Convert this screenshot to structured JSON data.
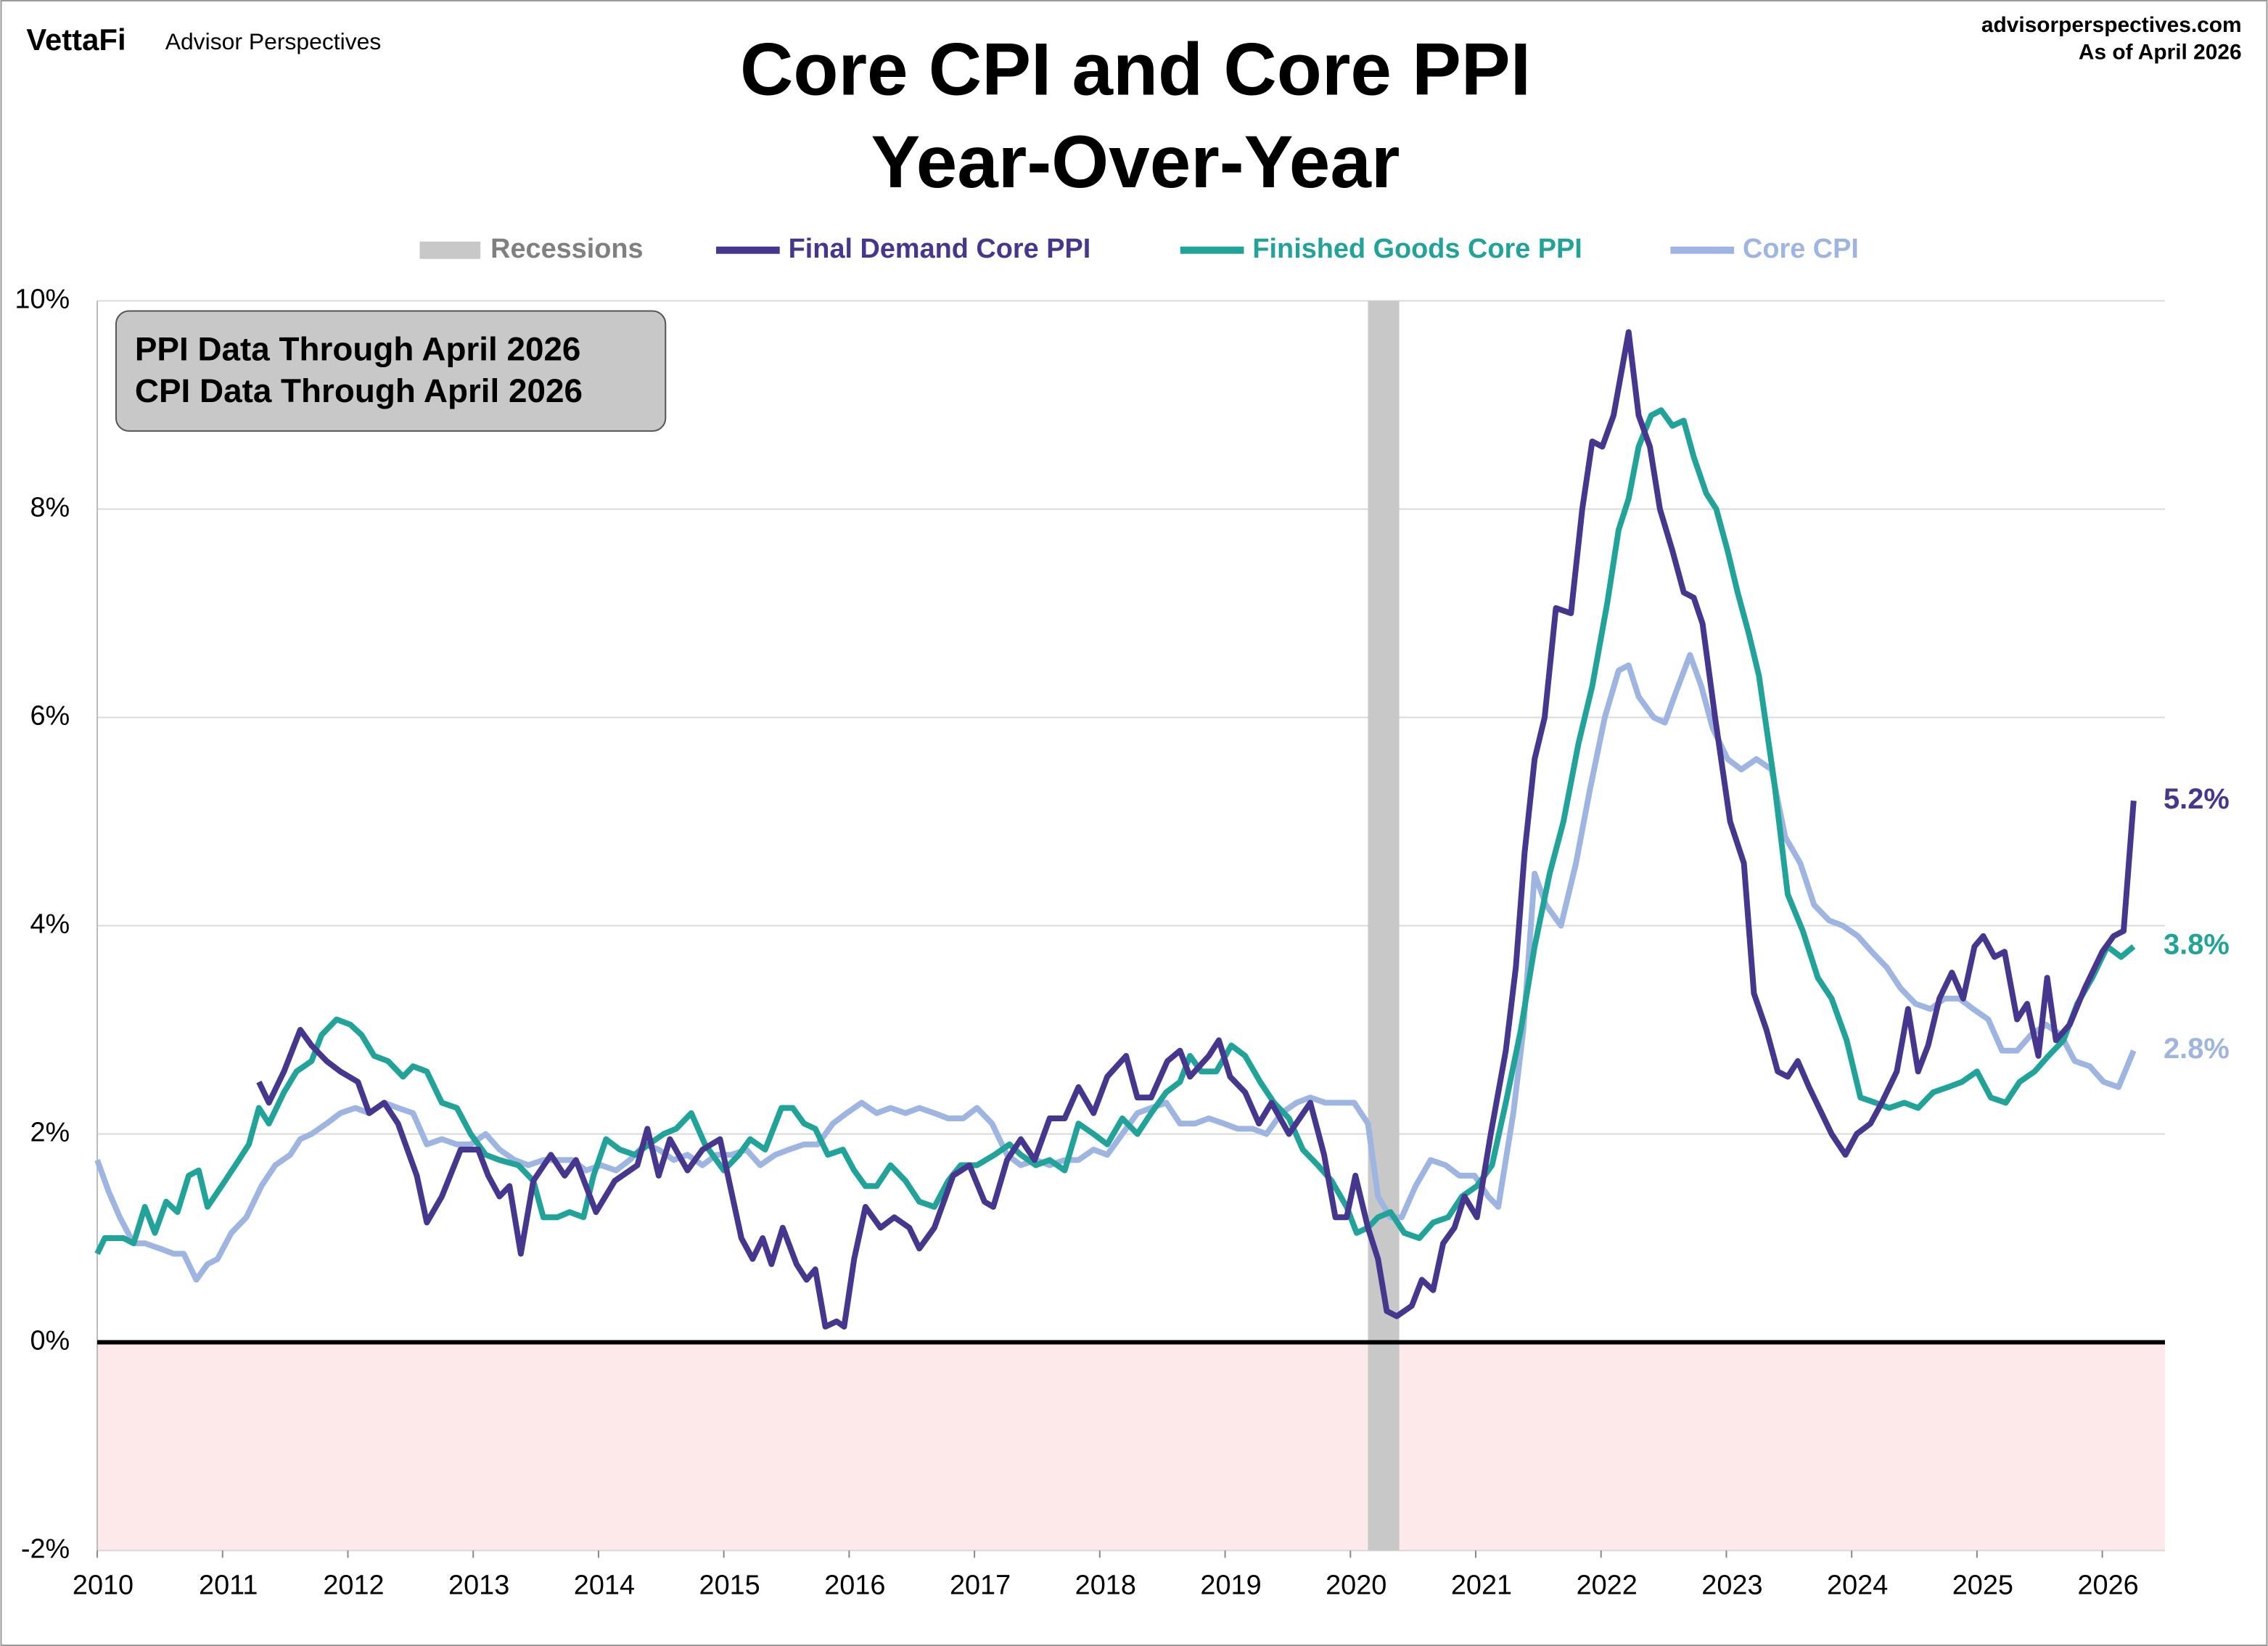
{
  "header": {
    "brand": "VettaFi",
    "brand_sub": "Advisor Perspectives",
    "site": "advisorperspectives.com",
    "as_of": "As of April 2026"
  },
  "chart_data": {
    "type": "line",
    "title": [
      "Core CPI and Core PPI",
      "Year-Over-Year"
    ],
    "annotation": [
      "PPI Data Through April 2026",
      "CPI Data Through April 2026"
    ],
    "xlim": [
      2010,
      2026.5
    ],
    "xticks": [
      2010,
      2011,
      2012,
      2013,
      2014,
      2015,
      2016,
      2017,
      2018,
      2019,
      2020,
      2021,
      2022,
      2023,
      2024,
      2025,
      2026
    ],
    "ylim": [
      -2,
      10
    ],
    "yticks": [
      {
        "value": -2,
        "label": "-2%"
      },
      {
        "value": 0,
        "label": "0%"
      },
      {
        "value": 2,
        "label": "2%"
      },
      {
        "value": 4,
        "label": "4%"
      },
      {
        "value": 6,
        "label": "6%"
      },
      {
        "value": 8,
        "label": "8%"
      },
      {
        "value": 10,
        "label": "10%"
      }
    ],
    "grid": true,
    "negative_fill": "#fde9e9",
    "recessions": {
      "name": "Recessions",
      "color": "#c8c8c8",
      "label_color": "#808080",
      "ranges": [
        [
          2020.14,
          2020.39
        ]
      ]
    },
    "series": [
      {
        "name": "Final Demand Core PPI",
        "color": "#46368e",
        "x": [
          2011.29,
          2011.37,
          2011.49,
          2011.62,
          2011.71,
          2011.83,
          2011.94,
          2012.08,
          2012.17,
          2012.29,
          2012.4,
          2012.55,
          2012.63,
          2012.75,
          2012.9,
          2013.04,
          2013.12,
          2013.21,
          2013.29,
          2013.38,
          2013.48,
          2013.62,
          2013.73,
          2013.82,
          2013.98,
          2014.13,
          2014.31,
          2014.39,
          2014.48,
          2014.57,
          2014.71,
          2014.83,
          2014.97,
          2015.14,
          2015.23,
          2015.31,
          2015.38,
          2015.47,
          2015.58,
          2015.66,
          2015.73,
          2015.81,
          2015.9,
          2015.96,
          2016.04,
          2016.13,
          2016.25,
          2016.36,
          2016.48,
          2016.56,
          2016.68,
          2016.83,
          2016.96,
          2017.08,
          2017.15,
          2017.26,
          2017.37,
          2017.48,
          2017.6,
          2017.72,
          2017.83,
          2017.95,
          2018.06,
          2018.21,
          2018.3,
          2018.41,
          2018.54,
          2018.64,
          2018.72,
          2018.87,
          2018.95,
          2019.04,
          2019.16,
          2019.27,
          2019.37,
          2019.51,
          2019.68,
          2019.79,
          2019.88,
          2019.97,
          2020.04,
          2020.14,
          2020.22,
          2020.29,
          2020.37,
          2020.49,
          2020.57,
          2020.66,
          2020.74,
          2020.83,
          2020.91,
          2021.01,
          2021.12,
          2021.24,
          2021.32,
          2021.39,
          2021.47,
          2021.55,
          2021.64,
          2021.76,
          2021.85,
          2021.93,
          2022.01,
          2022.1,
          2022.22,
          2022.3,
          2022.39,
          2022.47,
          2022.57,
          2022.66,
          2022.74,
          2022.81,
          2022.91,
          2023.03,
          2023.14,
          2023.22,
          2023.32,
          2023.41,
          2023.49,
          2023.57,
          2023.66,
          2023.76,
          2023.84,
          2023.95,
          2024.04,
          2024.15,
          2024.24,
          2024.36,
          2024.45,
          2024.53,
          2024.61,
          2024.7,
          2024.8,
          2024.89,
          2024.98,
          2025.05,
          2025.14,
          2025.22,
          2025.32,
          2025.4,
          2025.49,
          2025.56,
          2025.63,
          2025.74,
          2025.86,
          2026.0,
          2026.09,
          2026.17,
          2026.25
        ],
        "values": [
          2.5,
          2.3,
          2.6,
          3.0,
          2.85,
          2.7,
          2.6,
          2.5,
          2.2,
          2.3,
          2.1,
          1.6,
          1.15,
          1.4,
          1.85,
          1.85,
          1.6,
          1.4,
          1.5,
          0.85,
          1.55,
          1.8,
          1.6,
          1.75,
          1.25,
          1.55,
          1.7,
          2.05,
          1.6,
          1.95,
          1.65,
          1.85,
          1.95,
          1.0,
          0.8,
          1.0,
          0.75,
          1.1,
          0.75,
          0.6,
          0.7,
          0.15,
          0.2,
          0.15,
          0.8,
          1.3,
          1.1,
          1.2,
          1.1,
          0.9,
          1.1,
          1.6,
          1.7,
          1.35,
          1.3,
          1.75,
          1.95,
          1.75,
          2.15,
          2.15,
          2.45,
          2.2,
          2.55,
          2.75,
          2.35,
          2.35,
          2.7,
          2.8,
          2.55,
          2.75,
          2.9,
          2.55,
          2.4,
          2.1,
          2.3,
          2.0,
          2.3,
          1.8,
          1.2,
          1.2,
          1.6,
          1.1,
          0.8,
          0.3,
          0.25,
          0.35,
          0.6,
          0.5,
          0.95,
          1.1,
          1.4,
          1.2,
          2.0,
          2.8,
          3.6,
          4.7,
          5.6,
          6.0,
          7.05,
          7.0,
          8.0,
          8.65,
          8.6,
          8.9,
          9.7,
          8.9,
          8.6,
          8.0,
          7.6,
          7.2,
          7.15,
          6.9,
          6.0,
          5.0,
          4.6,
          3.35,
          3.0,
          2.6,
          2.55,
          2.7,
          2.45,
          2.2,
          2.0,
          1.8,
          2.0,
          2.1,
          2.3,
          2.6,
          3.2,
          2.6,
          2.85,
          3.3,
          3.55,
          3.3,
          3.8,
          3.9,
          3.7,
          3.75,
          3.1,
          3.25,
          2.75,
          3.5,
          2.9,
          3.05,
          3.4,
          3.75,
          3.9,
          3.95,
          5.2
        ],
        "end_label": {
          "value": 5.2,
          "label": "5.2%"
        }
      },
      {
        "name": "Finished Goods Core PPI",
        "color": "#22a39a",
        "x": [
          2010.0,
          2010.06,
          2010.21,
          2010.29,
          2010.38,
          2010.46,
          2010.55,
          2010.64,
          2010.73,
          2010.81,
          2010.88,
          2011.02,
          2011.13,
          2011.21,
          2011.29,
          2011.37,
          2011.49,
          2011.59,
          2011.71,
          2011.79,
          2011.91,
          2012.02,
          2012.11,
          2012.21,
          2012.32,
          2012.44,
          2012.52,
          2012.63,
          2012.75,
          2012.87,
          2012.98,
          2013.1,
          2013.21,
          2013.36,
          2013.48,
          2013.56,
          2013.67,
          2013.77,
          2013.88,
          2013.96,
          2014.06,
          2014.17,
          2014.29,
          2014.4,
          2014.52,
          2014.62,
          2014.74,
          2014.85,
          2015.0,
          2015.12,
          2015.21,
          2015.33,
          2015.46,
          2015.55,
          2015.64,
          2015.73,
          2015.83,
          2015.95,
          2016.04,
          2016.13,
          2016.22,
          2016.33,
          2016.45,
          2016.56,
          2016.68,
          2016.79,
          2016.89,
          2017.02,
          2017.16,
          2017.28,
          2017.37,
          2017.49,
          2017.6,
          2017.72,
          2017.83,
          2017.95,
          2018.06,
          2018.18,
          2018.3,
          2018.41,
          2018.53,
          2018.64,
          2018.72,
          2018.81,
          2018.93,
          2019.05,
          2019.16,
          2019.28,
          2019.39,
          2019.51,
          2019.62,
          2019.74,
          2019.85,
          2019.97,
          2020.05,
          2020.14,
          2020.22,
          2020.32,
          2020.43,
          2020.55,
          2020.66,
          2020.78,
          2020.89,
          2021.01,
          2021.13,
          2021.24,
          2021.36,
          2021.47,
          2021.59,
          2021.7,
          2021.82,
          2021.93,
          2022.05,
          2022.14,
          2022.22,
          2022.3,
          2022.4,
          2022.48,
          2022.57,
          2022.66,
          2022.74,
          2022.84,
          2022.92,
          2023.01,
          2023.09,
          2023.18,
          2023.26,
          2023.38,
          2023.49,
          2023.61,
          2023.73,
          2023.84,
          2023.96,
          2024.07,
          2024.19,
          2024.3,
          2024.42,
          2024.53,
          2024.65,
          2024.77,
          2024.88,
          2025.0,
          2025.11,
          2025.23,
          2025.34,
          2025.46,
          2025.57,
          2025.69,
          2025.8,
          2025.92,
          2026.04,
          2026.15,
          2026.25
        ],
        "values": [
          0.85,
          1.0,
          1.0,
          0.95,
          1.3,
          1.05,
          1.35,
          1.25,
          1.6,
          1.65,
          1.3,
          1.55,
          1.75,
          1.9,
          2.25,
          2.1,
          2.4,
          2.6,
          2.7,
          2.95,
          3.1,
          3.05,
          2.95,
          2.75,
          2.7,
          2.55,
          2.65,
          2.6,
          2.3,
          2.25,
          2.0,
          1.8,
          1.75,
          1.7,
          1.55,
          1.2,
          1.2,
          1.25,
          1.2,
          1.6,
          1.95,
          1.85,
          1.8,
          1.9,
          2.0,
          2.05,
          2.2,
          1.9,
          1.65,
          1.8,
          1.95,
          1.85,
          2.25,
          2.25,
          2.1,
          2.05,
          1.8,
          1.85,
          1.65,
          1.5,
          1.5,
          1.7,
          1.55,
          1.35,
          1.3,
          1.55,
          1.7,
          1.7,
          1.8,
          1.9,
          1.8,
          1.7,
          1.75,
          1.65,
          2.1,
          2.0,
          1.9,
          2.15,
          2.0,
          2.2,
          2.4,
          2.5,
          2.75,
          2.6,
          2.6,
          2.85,
          2.75,
          2.5,
          2.3,
          2.15,
          1.85,
          1.7,
          1.55,
          1.3,
          1.05,
          1.1,
          1.2,
          1.25,
          1.05,
          1.0,
          1.15,
          1.2,
          1.4,
          1.5,
          1.7,
          2.3,
          3.0,
          3.8,
          4.5,
          5.0,
          5.75,
          6.3,
          7.1,
          7.8,
          8.1,
          8.6,
          8.9,
          8.95,
          8.8,
          8.85,
          8.5,
          8.15,
          8.0,
          7.6,
          7.2,
          6.8,
          6.4,
          5.4,
          4.3,
          3.95,
          3.5,
          3.3,
          2.9,
          2.35,
          2.3,
          2.25,
          2.3,
          2.25,
          2.4,
          2.45,
          2.5,
          2.6,
          2.35,
          2.3,
          2.5,
          2.6,
          2.75,
          2.9,
          3.25,
          3.5,
          3.8,
          3.7,
          3.8
        ],
        "end_label": {
          "value": 3.8,
          "label": "3.8%"
        }
      },
      {
        "name": "Core CPI",
        "color": "#9db5e0",
        "x": [
          2010.0,
          2010.09,
          2010.18,
          2010.29,
          2010.38,
          2010.5,
          2010.61,
          2010.69,
          2010.79,
          2010.88,
          2010.96,
          2011.07,
          2011.19,
          2011.31,
          2011.42,
          2011.54,
          2011.62,
          2011.71,
          2011.83,
          2011.94,
          2012.06,
          2012.17,
          2012.29,
          2012.4,
          2012.52,
          2012.63,
          2012.75,
          2012.87,
          2012.98,
          2013.1,
          2013.21,
          2013.33,
          2013.44,
          2013.56,
          2013.67,
          2013.79,
          2013.9,
          2014.02,
          2014.14,
          2014.25,
          2014.37,
          2014.48,
          2014.6,
          2014.71,
          2014.83,
          2014.94,
          2015.06,
          2015.18,
          2015.29,
          2015.41,
          2015.52,
          2015.64,
          2015.75,
          2015.87,
          2015.98,
          2016.1,
          2016.22,
          2016.33,
          2016.45,
          2016.56,
          2016.68,
          2016.79,
          2016.91,
          2017.02,
          2017.14,
          2017.26,
          2017.37,
          2017.49,
          2017.6,
          2017.72,
          2017.83,
          2017.95,
          2018.06,
          2018.18,
          2018.3,
          2018.41,
          2018.53,
          2018.64,
          2018.76,
          2018.87,
          2018.99,
          2019.1,
          2019.22,
          2019.33,
          2019.45,
          2019.57,
          2019.68,
          2019.8,
          2019.91,
          2020.03,
          2020.14,
          2020.22,
          2020.32,
          2020.41,
          2020.52,
          2020.64,
          2020.76,
          2020.87,
          2020.99,
          2021.1,
          2021.18,
          2021.3,
          2021.38,
          2021.47,
          2021.56,
          2021.68,
          2021.8,
          2021.91,
          2022.03,
          2022.14,
          2022.22,
          2022.3,
          2022.42,
          2022.51,
          2022.6,
          2022.71,
          2022.8,
          2022.89,
          2023.01,
          2023.12,
          2023.24,
          2023.36,
          2023.47,
          2023.59,
          2023.7,
          2023.82,
          2023.93,
          2024.05,
          2024.16,
          2024.28,
          2024.39,
          2024.51,
          2024.63,
          2024.74,
          2024.86,
          2024.97,
          2025.09,
          2025.2,
          2025.32,
          2025.43,
          2025.55,
          2025.67,
          2025.78,
          2025.9,
          2026.01,
          2026.13,
          2026.25
        ],
        "values": [
          1.75,
          1.45,
          1.2,
          0.95,
          0.95,
          0.9,
          0.85,
          0.85,
          0.6,
          0.75,
          0.8,
          1.05,
          1.2,
          1.5,
          1.7,
          1.8,
          1.95,
          2.0,
          2.1,
          2.2,
          2.25,
          2.2,
          2.3,
          2.25,
          2.2,
          1.9,
          1.95,
          1.9,
          1.9,
          2.0,
          1.85,
          1.75,
          1.7,
          1.75,
          1.75,
          1.75,
          1.65,
          1.7,
          1.65,
          1.75,
          1.9,
          1.85,
          1.75,
          1.8,
          1.7,
          1.8,
          1.8,
          1.85,
          1.7,
          1.8,
          1.85,
          1.9,
          1.9,
          2.1,
          2.2,
          2.3,
          2.2,
          2.25,
          2.2,
          2.25,
          2.2,
          2.15,
          2.15,
          2.25,
          2.1,
          1.8,
          1.7,
          1.75,
          1.7,
          1.75,
          1.75,
          1.85,
          1.8,
          2.0,
          2.2,
          2.25,
          2.3,
          2.1,
          2.1,
          2.15,
          2.1,
          2.05,
          2.05,
          2.0,
          2.2,
          2.3,
          2.35,
          2.3,
          2.3,
          2.3,
          2.1,
          1.4,
          1.2,
          1.2,
          1.5,
          1.75,
          1.7,
          1.6,
          1.6,
          1.4,
          1.3,
          2.2,
          3.0,
          4.5,
          4.2,
          4.0,
          4.6,
          5.3,
          6.0,
          6.45,
          6.5,
          6.2,
          6.0,
          5.95,
          6.25,
          6.6,
          6.3,
          5.9,
          5.6,
          5.5,
          5.6,
          5.5,
          4.85,
          4.6,
          4.2,
          4.05,
          4.0,
          3.9,
          3.75,
          3.6,
          3.4,
          3.25,
          3.2,
          3.3,
          3.3,
          3.2,
          3.1,
          2.8,
          2.8,
          2.95,
          3.05,
          2.95,
          2.7,
          2.65,
          2.5,
          2.45,
          2.8
        ],
        "end_label": {
          "value": 2.8,
          "label": "2.8%"
        }
      }
    ]
  }
}
